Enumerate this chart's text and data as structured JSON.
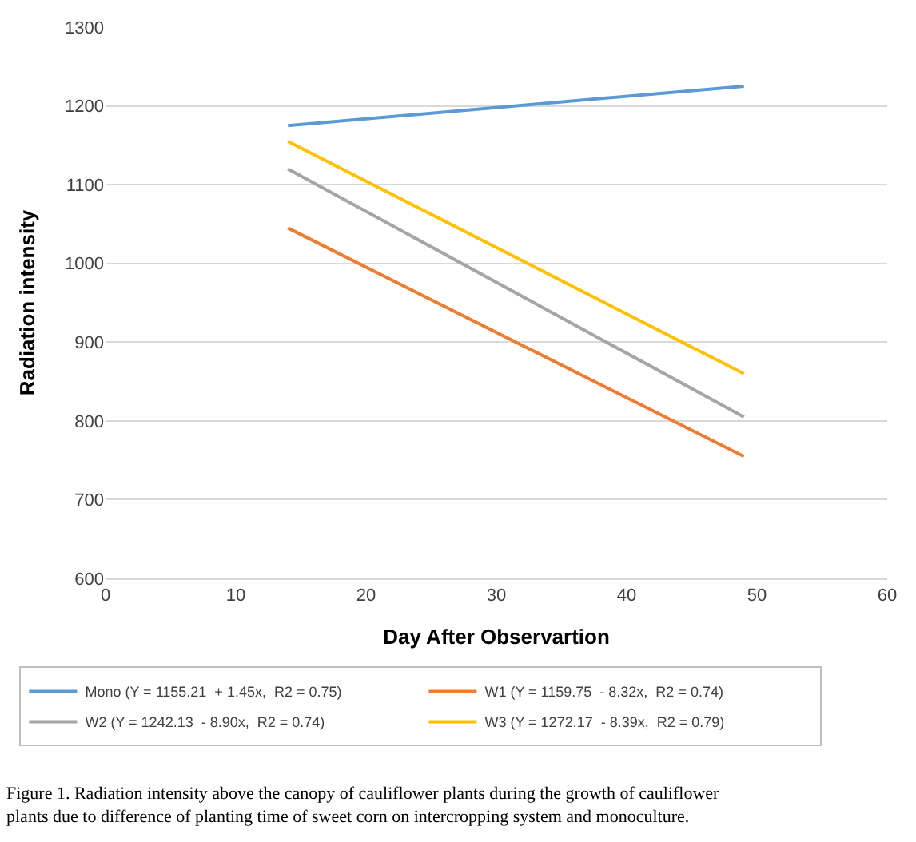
{
  "chart_data": {
    "type": "line",
    "xlabel": "Day After Observartion",
    "ylabel": "Radiation intensity",
    "x": [
      14,
      49
    ],
    "series": [
      {
        "name": "Mono (Y = 1155.21  + 1.45x,  R2 = 0.75)",
        "color": "#5b9bd5",
        "values": [
          1175,
          1225
        ]
      },
      {
        "name": "W1 (Y = 1159.75  - 8.32x,  R2 = 0.74)",
        "color": "#ed7d31",
        "values": [
          1045,
          755
        ]
      },
      {
        "name": "W2 (Y = 1242.13  - 8.90x,  R2 = 0.74)",
        "color": "#a5a5a5",
        "values": [
          1120,
          805
        ]
      },
      {
        "name": "W3 (Y = 1272.17  - 8.39x,  R2 = 0.79)",
        "color": "#ffc000",
        "values": [
          1155,
          860
        ]
      }
    ],
    "xlim": [
      0,
      60
    ],
    "xticks": [
      0,
      10,
      20,
      30,
      40,
      50,
      60
    ],
    "ylim": [
      600,
      1300
    ],
    "yticks": [
      600,
      700,
      800,
      900,
      1000,
      1100,
      1200,
      1300
    ],
    "grid": "y",
    "legend": "bottom",
    "marker": "none",
    "line_style": "solid",
    "annotations": [
      "Figure 1. Radiation intensity above the canopy of cauliflower plants during the growth of cauliflower plants due to difference of planting time of sweet corn on intercropping system and monoculture."
    ]
  }
}
